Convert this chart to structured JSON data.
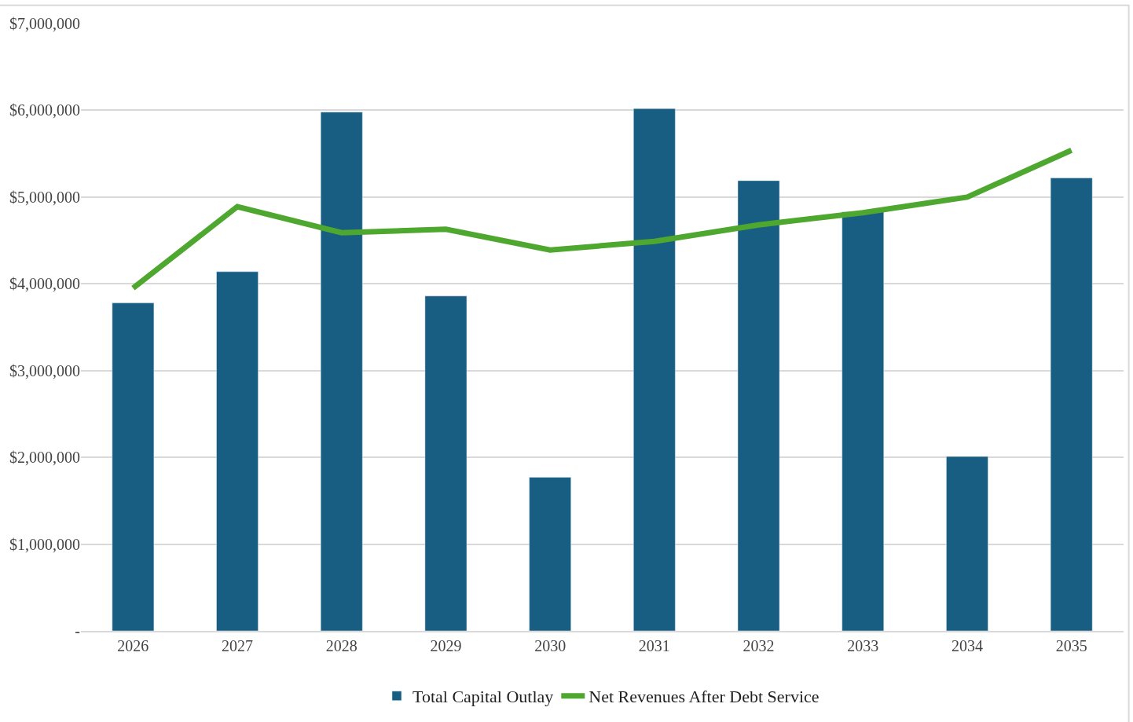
{
  "chart_data": {
    "type": "bar",
    "categories": [
      "2026",
      "2027",
      "2028",
      "2029",
      "2030",
      "2031",
      "2032",
      "2033",
      "2034",
      "2035"
    ],
    "series": [
      {
        "name": "Total Capital Outlay",
        "color": "#175e82",
        "values": [
          3780000,
          4140000,
          5980000,
          3860000,
          1770000,
          6020000,
          5190000,
          4830000,
          2010000,
          5220000
        ]
      },
      {
        "name": "Net Revenues After Debt Service",
        "type": "line",
        "color": "#4ea72e",
        "values": [
          3950000,
          4890000,
          4590000,
          4630000,
          4390000,
          4490000,
          4680000,
          4820000,
          5000000,
          5540000
        ]
      }
    ],
    "ylim": [
      0,
      7000000
    ],
    "yticks": [
      {
        "value": 0,
        "label": "-"
      },
      {
        "value": 1000000,
        "label": "$1,000,000"
      },
      {
        "value": 2000000,
        "label": "$2,000,000"
      },
      {
        "value": 3000000,
        "label": "$3,000,000"
      },
      {
        "value": 4000000,
        "label": "$4,000,000"
      },
      {
        "value": 5000000,
        "label": "$5,000,000"
      },
      {
        "value": 6000000,
        "label": "$6,000,000"
      },
      {
        "value": 7000000,
        "label": "$7,000,000"
      }
    ],
    "grid": "y",
    "legend": "bottom",
    "marker": "none",
    "line_style": "solid"
  }
}
